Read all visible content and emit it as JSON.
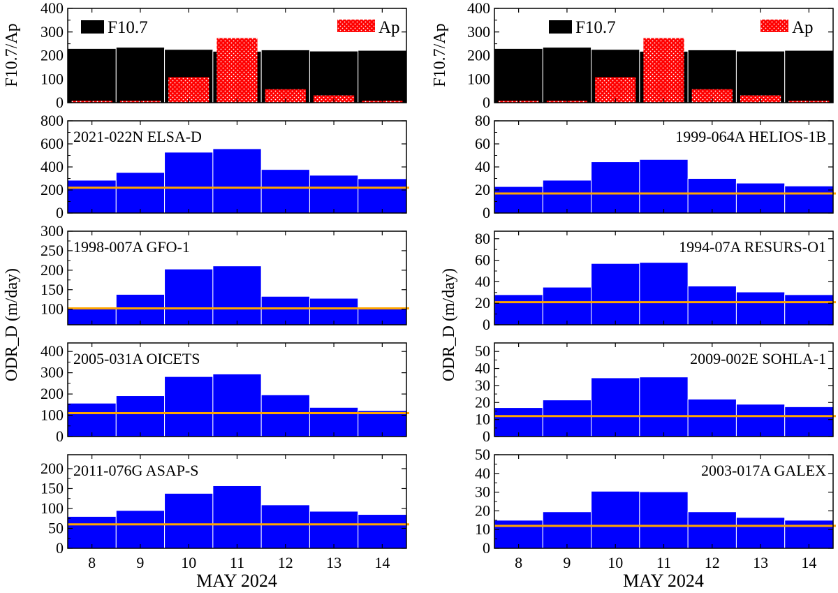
{
  "figure": {
    "f107_ap_ylabel": "F10.7/Ap",
    "odr_ylabel": "ODR_D (m/day)",
    "xlabel": "MAY 2024",
    "legend_f107": "F10.7",
    "legend_ap": "Ap"
  },
  "colors": {
    "f107": "#000000",
    "ap": "#ff0000",
    "odr_bars": "#0000ff",
    "baseline": "#ffa500"
  },
  "chart_data": [
    {
      "type": "bar",
      "id": "f107-left",
      "title": "",
      "ylabel": "F10.7/Ap",
      "xlabel": "",
      "categories": [
        "8",
        "9",
        "10",
        "11",
        "12",
        "13",
        "14"
      ],
      "series": [
        {
          "name": "F10.7",
          "values": [
            230,
            235,
            226,
            218,
            224,
            219,
            222
          ]
        },
        {
          "name": "Ap",
          "values": [
            8,
            8,
            108,
            274,
            57,
            31,
            8
          ]
        }
      ],
      "ylim": [
        0,
        400
      ],
      "yticks": [
        0,
        100,
        200,
        300,
        400
      ]
    },
    {
      "type": "bar",
      "id": "elsa-d",
      "title": "2021-022N ELSA-D",
      "categories": [
        "8",
        "9",
        "10",
        "11",
        "12",
        "13",
        "14"
      ],
      "values": [
        285,
        352,
        528,
        558,
        378,
        328,
        298
      ],
      "baseline": 220,
      "ylim": [
        0,
        800
      ],
      "yticks": [
        0,
        200,
        400,
        600,
        800
      ]
    },
    {
      "type": "bar",
      "id": "gfo-1",
      "title": "1998-007A GFO-1",
      "categories": [
        "8",
        "9",
        "10",
        "11",
        "12",
        "13",
        "14"
      ],
      "values": [
        102,
        138,
        203,
        211,
        133,
        128,
        103
      ],
      "baseline": 102,
      "ylim": [
        60,
        300
      ],
      "yticks": [
        100,
        150,
        200,
        250,
        300
      ]
    },
    {
      "type": "bar",
      "id": "oicets",
      "title": "2005-031A OICETS",
      "categories": [
        "8",
        "9",
        "10",
        "11",
        "12",
        "13",
        "14"
      ],
      "values": [
        157,
        192,
        282,
        294,
        196,
        137,
        122
      ],
      "baseline": 110,
      "ylim": [
        0,
        440
      ],
      "yticks": [
        0,
        100,
        200,
        300,
        400
      ]
    },
    {
      "type": "bar",
      "id": "asap-s",
      "title": "2011-076G ASAP-S",
      "xlabel": "MAY 2024",
      "categories": [
        "8",
        "9",
        "10",
        "11",
        "12",
        "13",
        "14"
      ],
      "values": [
        80,
        95,
        138,
        157,
        109,
        93,
        85
      ],
      "baseline": 60,
      "ylim": [
        0,
        235
      ],
      "yticks": [
        0,
        50,
        100,
        150,
        200
      ]
    },
    {
      "type": "bar",
      "id": "f107-right",
      "title": "",
      "ylabel": "F10.7/Ap",
      "categories": [
        "8",
        "9",
        "10",
        "11",
        "12",
        "13",
        "14"
      ],
      "series": [
        {
          "name": "F10.7",
          "values": [
            230,
            235,
            226,
            218,
            224,
            219,
            222
          ]
        },
        {
          "name": "Ap",
          "values": [
            8,
            8,
            108,
            274,
            57,
            31,
            8
          ]
        }
      ],
      "ylim": [
        0,
        400
      ],
      "yticks": [
        0,
        100,
        200,
        300,
        400
      ]
    },
    {
      "type": "bar",
      "id": "helios-1b",
      "title": "1999-064A HELIOS-1B",
      "categories": [
        "8",
        "9",
        "10",
        "11",
        "12",
        "13",
        "14"
      ],
      "values": [
        23,
        28.5,
        44.5,
        46.5,
        30,
        26,
        23.5
      ],
      "baseline": 17,
      "ylim": [
        0,
        80
      ],
      "yticks": [
        0,
        20,
        40,
        60,
        80
      ]
    },
    {
      "type": "bar",
      "id": "resurs-o1",
      "title": "1994-07A RESURS-O1",
      "categories": [
        "8",
        "9",
        "10",
        "11",
        "12",
        "13",
        "14"
      ],
      "values": [
        28,
        35,
        57,
        58,
        36,
        30.5,
        28
      ],
      "baseline": 21,
      "ylim": [
        0,
        87
      ],
      "yticks": [
        0,
        20,
        40,
        60,
        80
      ]
    },
    {
      "type": "bar",
      "id": "sohla-1",
      "title": "2009-002E SOHLA-1",
      "categories": [
        "8",
        "9",
        "10",
        "11",
        "12",
        "13",
        "14"
      ],
      "values": [
        17,
        21.5,
        34.5,
        35,
        22,
        19,
        17.5
      ],
      "baseline": 12,
      "ylim": [
        0,
        55
      ],
      "yticks": [
        0,
        10,
        20,
        30,
        40,
        50
      ]
    },
    {
      "type": "bar",
      "id": "galex",
      "title": "2003-017A GALEX",
      "xlabel": "MAY 2024",
      "categories": [
        "8",
        "9",
        "10",
        "11",
        "12",
        "13",
        "14"
      ],
      "values": [
        15,
        19.5,
        30.5,
        30.2,
        19.5,
        16.5,
        15
      ],
      "baseline": 12,
      "ylim": [
        0,
        50
      ],
      "yticks": [
        0,
        10,
        20,
        30,
        40,
        50
      ]
    }
  ]
}
